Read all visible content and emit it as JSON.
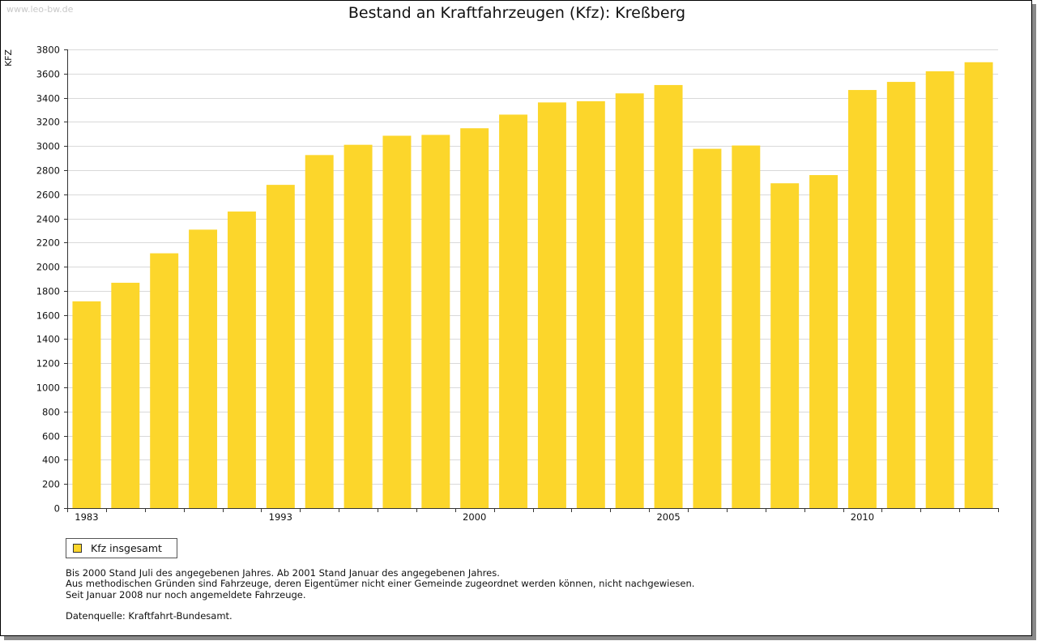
{
  "watermark": "www.leo-bw.de",
  "legend": {
    "label": "Kfz insgesamt"
  },
  "notes": [
    "Bis 2000 Stand Juli des angegebenen Jahres. Ab 2001 Stand Januar des angegebenen Jahres.",
    "Aus methodischen Gründen sind Fahrzeuge, deren Eigentümer nicht einer Gemeinde zugeordnet werden können, nicht nachgewiesen.",
    "Seit Januar 2008 nur noch angemeldete Fahrzeuge."
  ],
  "source": "Datenquelle: Kraftfahrt-Bundesamt.",
  "chart_data": {
    "type": "bar",
    "title": "Bestand an Kraftfahrzeugen (Kfz): Kreßberg",
    "ylabel": "KFZ",
    "xlabel": "",
    "ylim": [
      0,
      3800
    ],
    "yticks": [
      0,
      200,
      400,
      600,
      800,
      1000,
      1200,
      1400,
      1600,
      1800,
      2000,
      2200,
      2400,
      2600,
      2800,
      3000,
      3200,
      3400,
      3600,
      3800
    ],
    "grid": true,
    "legend_position": "bottom-left",
    "color": "#fcd62b",
    "x_tick_labels": [
      "1983",
      "1993",
      "2000",
      "2005",
      "2010"
    ],
    "series": [
      {
        "name": "Kfz insgesamt",
        "values": [
          1713,
          1867,
          2111,
          2307,
          2457,
          2678,
          2925,
          3010,
          3085,
          3092,
          3147,
          3260,
          3361,
          3371,
          3436,
          3505,
          2977,
          3004,
          2691,
          2759,
          3464,
          3531,
          3619,
          3694
        ]
      }
    ]
  }
}
